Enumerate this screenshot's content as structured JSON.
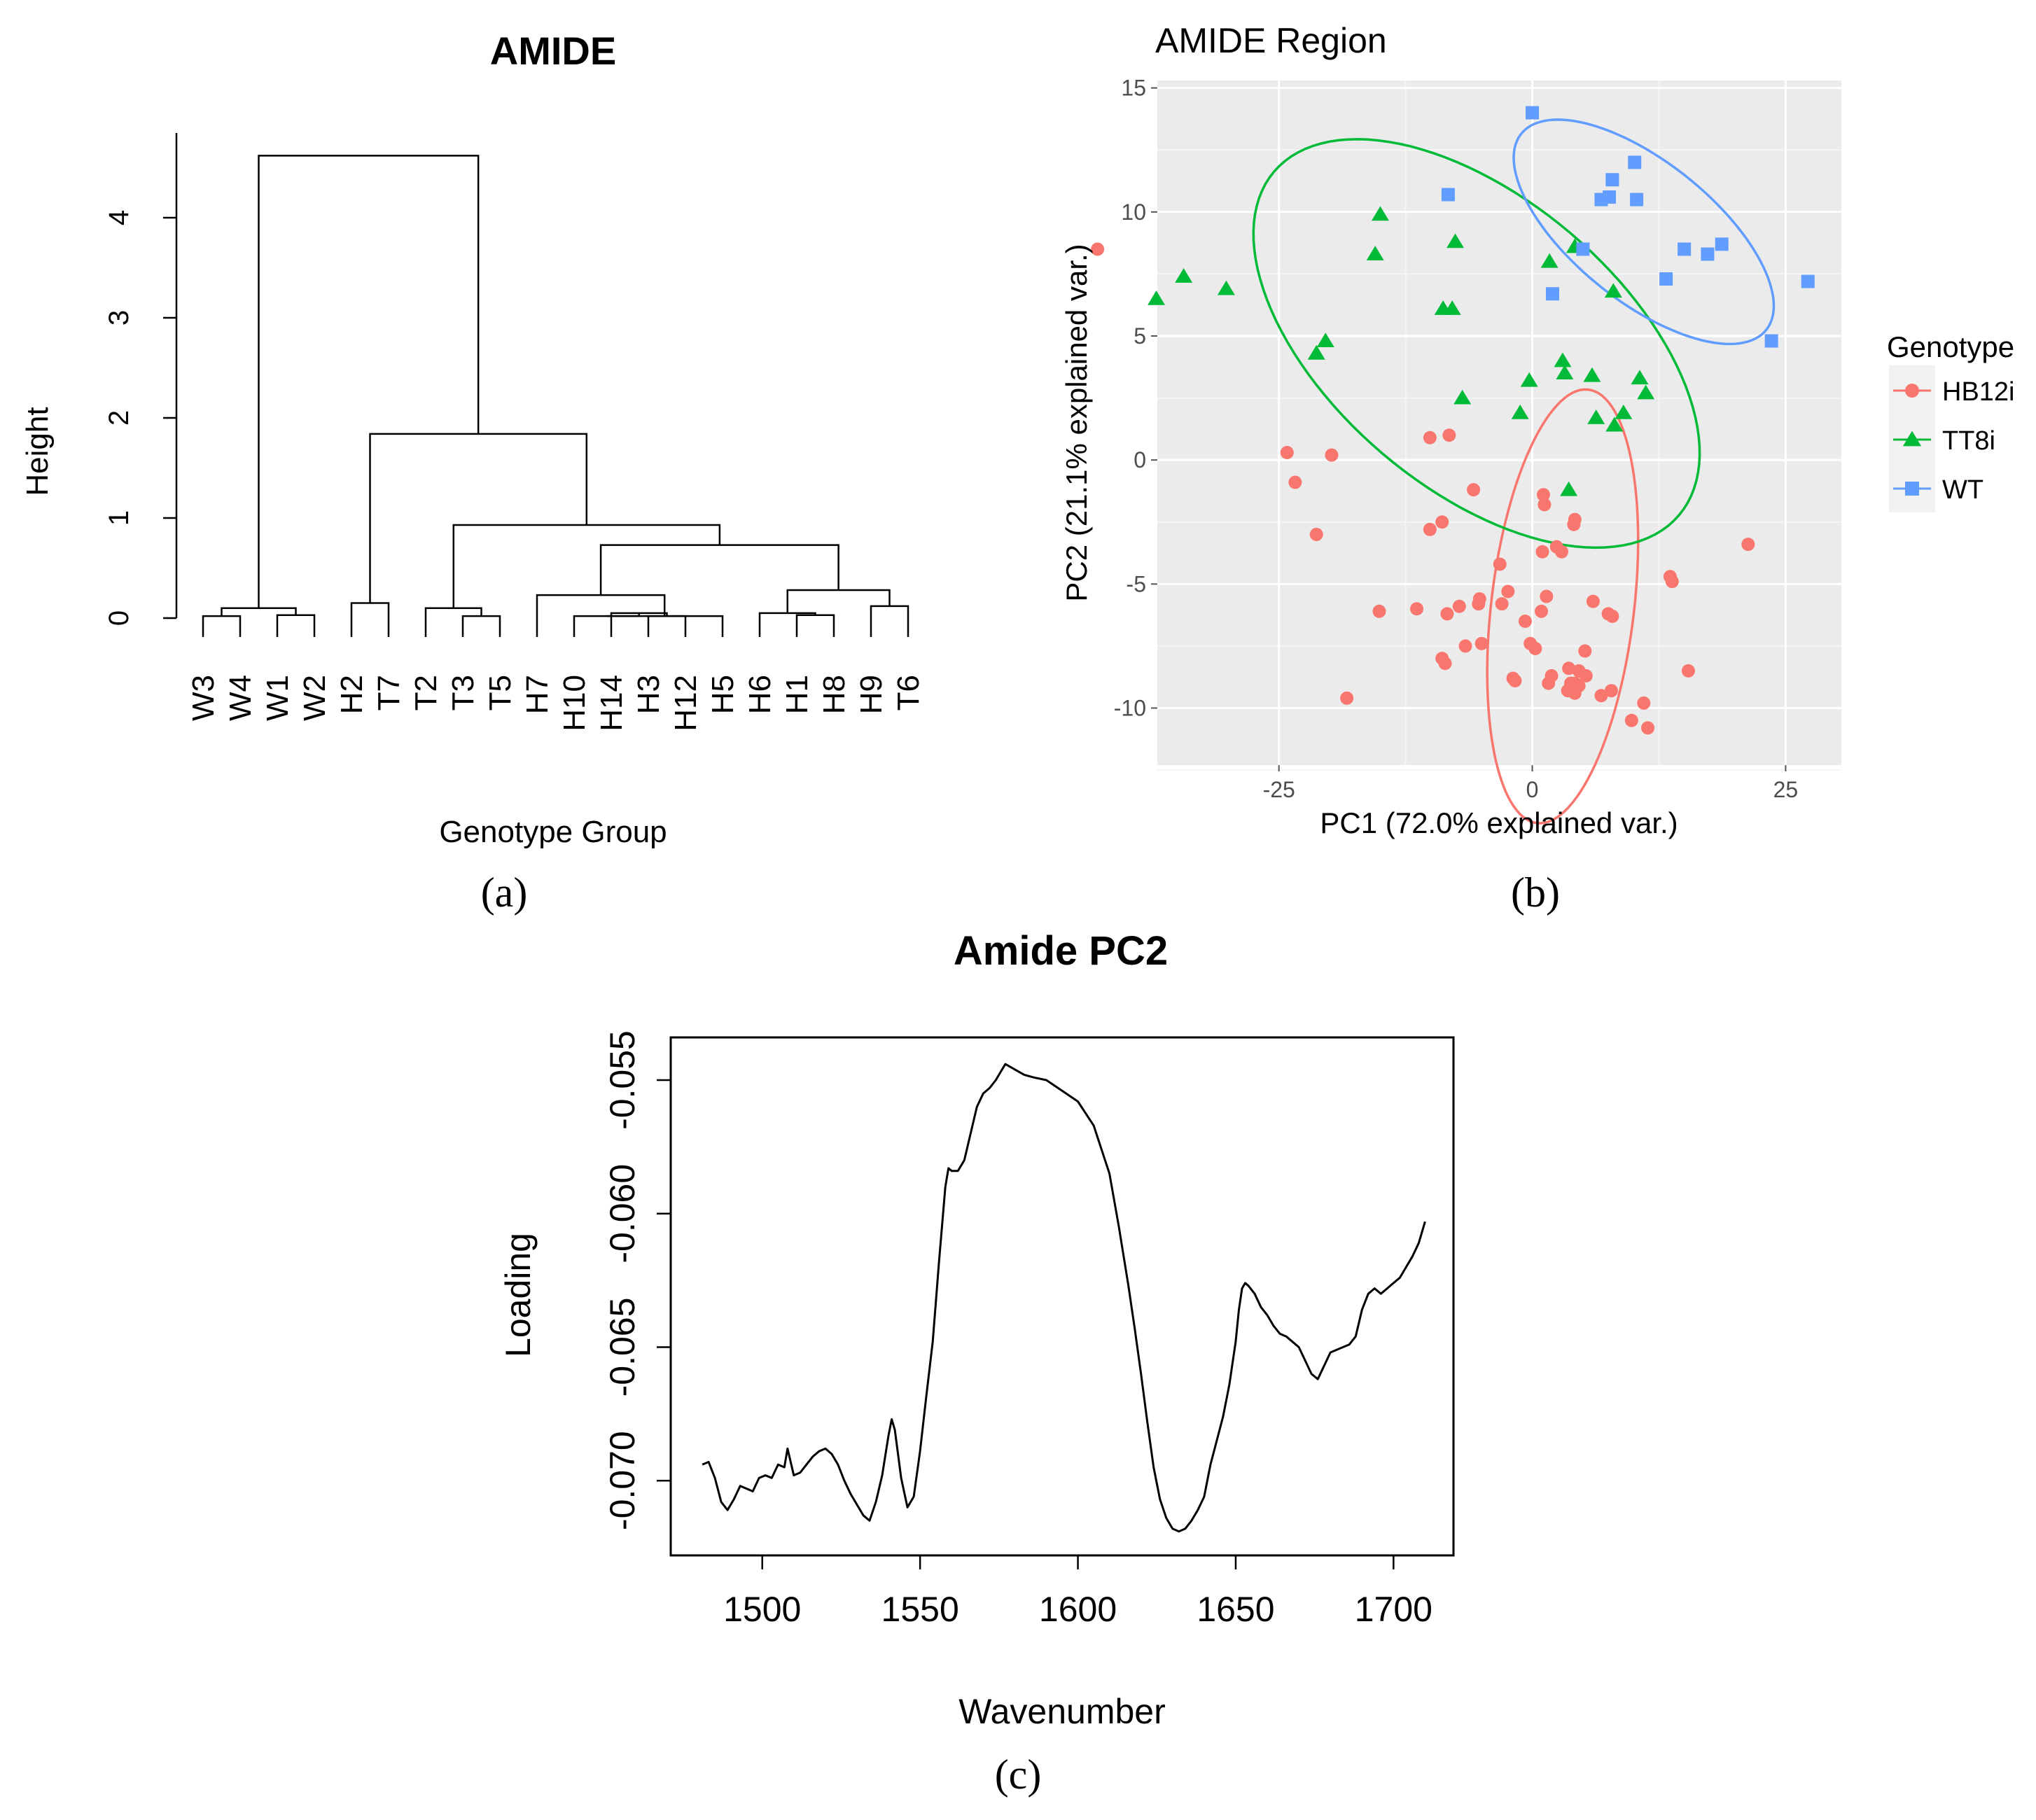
{
  "figure": {
    "panel_labels": [
      "(a)",
      "(b)",
      "(c)"
    ]
  },
  "chart_data": [
    {
      "type": "dendrogram",
      "title": "AMIDE",
      "xlabel": "Genotype Group",
      "ylabel": "Height",
      "ylim": [
        0,
        4.6
      ],
      "yticks": [
        0,
        1,
        2,
        3,
        4
      ],
      "leaves": [
        "W3",
        "W4",
        "W1",
        "W2",
        "H2",
        "T7",
        "T2",
        "T3",
        "T5",
        "H7",
        "H10",
        "H14",
        "H3",
        "H12",
        "H5",
        "H6",
        "H1",
        "H8",
        "H9",
        "T6"
      ],
      "merges": [
        {
          "left": "W3",
          "right": "W4",
          "height": 0.02
        },
        {
          "left": "W1",
          "right": "W2",
          "height": 0.03
        },
        {
          "left": "(W3,W4)",
          "right": "(W1,W2)",
          "height": 0.1
        },
        {
          "left": "H2",
          "right": "T7",
          "height": 0.15
        },
        {
          "left": "T3",
          "right": "T5",
          "height": 0.02
        },
        {
          "left": "T2",
          "right": "(T3,T5)",
          "height": 0.1
        },
        {
          "left": "H3",
          "right": "H12",
          "height": 0.02
        },
        {
          "left": "H14",
          "right": "(H3,H12)",
          "height": 0.05
        },
        {
          "left": "H10",
          "right": "(H14,H3,H12)",
          "height": 0.02
        },
        {
          "left": "(H10,H14,H3,H12)",
          "right": "H5",
          "height": 0.02
        },
        {
          "left": "H7",
          "right": "(H10,H14,H3,H12,H5)",
          "height": 0.23
        },
        {
          "left": "H1",
          "right": "H8",
          "height": 0.03
        },
        {
          "left": "H6",
          "right": "(H1,H8)",
          "height": 0.05
        },
        {
          "left": "H9",
          "right": "T6",
          "height": 0.12
        },
        {
          "left": "(H6,H1,H8)",
          "right": "(H9,T6)",
          "height": 0.28
        },
        {
          "left": "(H7..H5)",
          "right": "(H6..T6)",
          "height": 0.73
        },
        {
          "left": "(T2,T3,T5)",
          "right": "(H7..T6)",
          "height": 0.93
        },
        {
          "left": "(H2,T7)",
          "right": "(T2..T6)",
          "height": 1.84
        },
        {
          "left": "(W3..W2)",
          "right": "(H2..T6)",
          "height": 4.62
        }
      ]
    },
    {
      "type": "scatter",
      "title": "AMIDE Region",
      "xlabel": "PC1 (72.0% explained var.)",
      "ylabel": "PC2 (21.1% explained var.)",
      "xlim": [
        -37,
        30.5
      ],
      "ylim": [
        -12.3,
        15.3
      ],
      "xticks": [
        -25,
        0,
        25
      ],
      "xtick_labels": [
        "-25",
        "0",
        "25"
      ],
      "yticks": [
        -10,
        -5,
        0,
        5,
        10,
        15
      ],
      "ytick_labels": [
        "-10",
        "-5",
        "0",
        "5",
        "10",
        "15"
      ],
      "grid": true,
      "legend": {
        "title": "Genotype",
        "position": "right"
      },
      "series": [
        {
          "name": "HB12i",
          "color": "#F8766D",
          "marker": "circle",
          "x": [
            -42.9,
            -24.2,
            -23.4,
            -19.8,
            -21.3,
            -10.1,
            -8.2,
            -5.8,
            -10.1,
            -8.9,
            -3.2,
            1.1,
            1.2,
            2.4,
            4.2,
            4.1,
            1.0,
            2.9,
            -5.2,
            1.4,
            -2.4,
            -3.0,
            -5.3,
            -8.4,
            -7.2,
            -11.4,
            -15.1,
            -5.0,
            -0.7,
            0.9,
            -6.6,
            -8.9,
            -8.6,
            -0.2,
            0.3,
            6.0,
            7.5,
            7.9,
            5.2,
            4.6,
            3.6,
            13.6,
            13.8,
            21.3,
            15.4,
            5.3,
            -1.7,
            1.6,
            1.9,
            -1.9,
            3.8,
            3.5,
            4.2,
            4.6,
            6.8,
            7.8,
            4.2,
            11.0,
            9.8,
            11.4,
            -18.3
          ],
          "y": [
            8.5,
            0.3,
            -0.9,
            0.2,
            -3.0,
            0.9,
            1.0,
            -1.2,
            -2.8,
            -2.5,
            -4.2,
            -1.4,
            -1.8,
            -3.5,
            -2.4,
            -2.6,
            -3.7,
            -3.7,
            -5.6,
            -5.5,
            -5.3,
            -5.8,
            -5.8,
            -6.2,
            -5.9,
            -6.0,
            -6.1,
            -7.4,
            -6.5,
            -6.1,
            -7.5,
            -8.0,
            -8.2,
            -7.4,
            -7.6,
            -5.7,
            -6.2,
            -6.3,
            -7.7,
            -8.5,
            -8.4,
            -4.7,
            -4.9,
            -3.4,
            -8.5,
            -8.7,
            -8.9,
            -9.0,
            -8.7,
            -8.8,
            -9.0,
            -9.3,
            -9.4,
            -9.1,
            -9.5,
            -9.3,
            -9.0,
            -9.8,
            -10.5,
            -10.8,
            -9.6
          ]
        },
        {
          "name": "TT8i",
          "color": "#00BA38",
          "marker": "triangle",
          "x": [
            -37.1,
            -34.4,
            -30.2,
            -21.3,
            -20.4,
            -15.0,
            -15.5,
            -7.6,
            -8.8,
            -7.9,
            -6.9,
            -1.2,
            -0.3,
            1.7,
            3.0,
            3.2,
            4.2,
            5.9,
            8.0,
            8.1,
            9.0,
            10.6,
            11.2,
            6.3,
            3.6
          ],
          "y": [
            6.5,
            7.4,
            6.9,
            4.3,
            4.8,
            9.9,
            8.3,
            8.8,
            6.1,
            6.1,
            2.5,
            1.9,
            3.2,
            8.0,
            4.0,
            3.5,
            8.6,
            3.4,
            6.8,
            1.4,
            1.9,
            3.3,
            2.7,
            1.7,
            -1.2
          ]
        },
        {
          "name": "WT",
          "color": "#619CFF",
          "marker": "square",
          "x": [
            0.0,
            -8.3,
            7.9,
            7.6,
            6.8,
            10.3,
            10.1,
            5.0,
            15.0,
            17.3,
            18.7,
            13.2,
            2.0,
            27.2,
            23.6
          ],
          "y": [
            14.0,
            10.7,
            11.3,
            10.6,
            10.5,
            10.5,
            12.0,
            8.5,
            8.5,
            8.3,
            8.7,
            7.3,
            6.7,
            7.2,
            4.8
          ]
        }
      ],
      "ellipses": [
        {
          "series": "HB12i",
          "center": [
            3.0,
            -5.9
          ],
          "radii": [
            9.4,
            6.6
          ],
          "rotation_deg": 59
        },
        {
          "series": "TT8i",
          "center": [
            -5.5,
            4.7
          ],
          "radii": [
            22.5,
            6.8
          ],
          "rotation_deg": -12.5
        },
        {
          "series": "WT",
          "center": [
            11.0,
            9.2
          ],
          "radii": [
            13.2,
            3.3
          ],
          "rotation_deg": -14
        }
      ]
    },
    {
      "type": "line",
      "title": "Amide PC2",
      "xlabel": "Wavenumber",
      "ylabel": "Loading",
      "xlim": [
        1471,
        1719
      ],
      "ylim": [
        -0.0728,
        -0.0534
      ],
      "xticks": [
        1500,
        1550,
        1600,
        1650,
        1700
      ],
      "xtick_labels": [
        "1500",
        "1550",
        "1600",
        "1650",
        "1700"
      ],
      "yticks": [
        -0.07,
        -0.065,
        -0.06,
        -0.055
      ],
      "ytick_labels": [
        "-0.070",
        "-0.065",
        "-0.060",
        "-0.055"
      ],
      "series": [
        {
          "name": "Loading",
          "x": [
            1481,
            1483,
            1485,
            1487,
            1489,
            1491,
            1493,
            1495,
            1497,
            1499,
            1501,
            1503,
            1505,
            1507,
            1508,
            1510,
            1512,
            1514,
            1516,
            1518,
            1520,
            1522,
            1524,
            1526,
            1528,
            1530,
            1532,
            1534,
            1536,
            1538,
            1540,
            1541,
            1542,
            1544,
            1546,
            1548,
            1550,
            1552,
            1554,
            1556,
            1558,
            1559,
            1560,
            1562,
            1564,
            1566,
            1568,
            1570,
            1572,
            1574,
            1575,
            1577,
            1580,
            1583,
            1586,
            1590,
            1595,
            1600,
            1605,
            1610,
            1613,
            1616,
            1618,
            1620,
            1622,
            1624,
            1626,
            1628,
            1630,
            1632,
            1634,
            1636,
            1638,
            1640,
            1642,
            1644,
            1646,
            1648,
            1650,
            1651,
            1652,
            1653,
            1654,
            1656,
            1658,
            1660,
            1662,
            1664,
            1666,
            1668,
            1670,
            1672,
            1674,
            1676,
            1678,
            1680,
            1682,
            1684,
            1686,
            1688,
            1690,
            1692,
            1694,
            1696,
            1698,
            1700,
            1702,
            1704,
            1706,
            1708,
            1710
          ],
          "y": [
            -0.0694,
            -0.0693,
            -0.0699,
            -0.0708,
            -0.0711,
            -0.0707,
            -0.0702,
            -0.0703,
            -0.0704,
            -0.0699,
            -0.0698,
            -0.0699,
            -0.0694,
            -0.0695,
            -0.0688,
            -0.0698,
            -0.0697,
            -0.0694,
            -0.0691,
            -0.0689,
            -0.0688,
            -0.069,
            -0.0694,
            -0.07,
            -0.0705,
            -0.0709,
            -0.0713,
            -0.0715,
            -0.0708,
            -0.0698,
            -0.0683,
            -0.0677,
            -0.0681,
            -0.0699,
            -0.071,
            -0.0706,
            -0.0689,
            -0.0668,
            -0.0648,
            -0.0618,
            -0.059,
            -0.0583,
            -0.0584,
            -0.0584,
            -0.058,
            -0.057,
            -0.056,
            -0.0555,
            -0.0553,
            -0.055,
            -0.0548,
            -0.0544,
            -0.0546,
            -0.0548,
            -0.0549,
            -0.055,
            -0.0554,
            -0.0558,
            -0.0567,
            -0.0585,
            -0.0605,
            -0.0627,
            -0.0643,
            -0.066,
            -0.0678,
            -0.0695,
            -0.0707,
            -0.0714,
            -0.0718,
            -0.0719,
            -0.0718,
            -0.0715,
            -0.0711,
            -0.0706,
            -0.0694,
            -0.0685,
            -0.0676,
            -0.0664,
            -0.0648,
            -0.0636,
            -0.0628,
            -0.0626,
            -0.0627,
            -0.063,
            -0.0635,
            -0.0638,
            -0.0642,
            -0.0645,
            -0.0646,
            -0.0648,
            -0.065,
            -0.0655,
            -0.066,
            -0.0662,
            -0.0657,
            -0.0652,
            -0.0651,
            -0.065,
            -0.0649,
            -0.0646,
            -0.0636,
            -0.063,
            -0.0628,
            -0.063,
            -0.0628,
            -0.0626,
            -0.0624,
            -0.062,
            -0.0616,
            -0.0611,
            -0.0603
          ]
        }
      ]
    }
  ]
}
